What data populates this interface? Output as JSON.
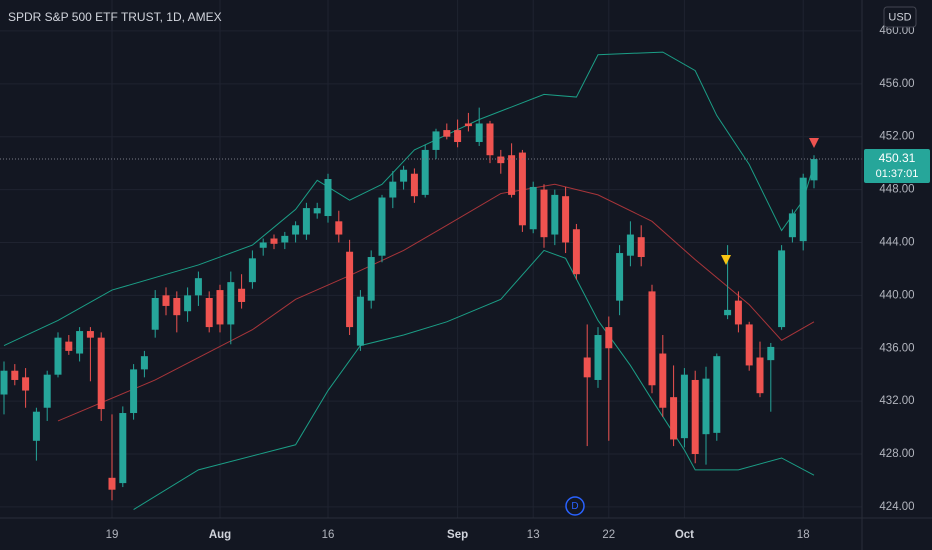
{
  "chart_data": {
    "type": "candlestick",
    "title": "SPDR S&P 500 ETF TRUST, 1D, AMEX",
    "currency": "USD",
    "countdown": "01:37:01",
    "annotation": "D",
    "categories": [
      null,
      null,
      null,
      null,
      null,
      null,
      null,
      null,
      null,
      null,
      "19",
      null,
      null,
      null,
      null,
      null,
      null,
      null,
      null,
      null,
      "Aug",
      null,
      null,
      null,
      null,
      null,
      null,
      null,
      null,
      null,
      "16",
      null,
      null,
      null,
      null,
      null,
      null,
      null,
      null,
      null,
      null,
      null,
      "Sep",
      null,
      null,
      null,
      null,
      null,
      null,
      "13",
      null,
      null,
      null,
      null,
      null,
      null,
      "22",
      null,
      null,
      null,
      null,
      null,
      null,
      "Oct",
      null,
      null,
      null,
      null,
      null,
      null,
      null,
      null,
      null,
      null,
      "18",
      null
    ],
    "open": [
      432.5,
      434.3,
      433.8,
      429,
      431.5,
      434,
      436.5,
      435.6,
      437.3,
      436.8,
      426.2,
      425.8,
      431.1,
      434.4,
      437.4,
      440,
      439.8,
      438.8,
      440,
      439.8,
      440.4,
      437.8,
      440.5,
      441,
      443.6,
      444.3,
      444,
      444.6,
      444.6,
      446.2,
      446,
      445.6,
      443.3,
      436.2,
      439.6,
      443,
      447.4,
      448.6,
      449.2,
      447.6,
      451,
      452.5,
      452.5,
      453,
      451.6,
      453,
      450.5,
      450.6,
      450.8,
      445,
      448,
      444.6,
      447.5,
      445,
      435.3,
      433.6,
      437.6,
      439.6,
      443,
      444.4,
      440.3,
      435.6,
      432.3,
      429.2,
      433.6,
      429.5,
      429.6,
      438.5,
      439.6,
      437.8,
      435.3,
      435.1,
      437.6,
      444.4,
      444.1,
      448.7
    ],
    "high": [
      435,
      434.8,
      434.5,
      431.5,
      434.3,
      437.2,
      437,
      437.6,
      437.6,
      437.2,
      431,
      431.6,
      434.8,
      435.8,
      440.4,
      440.6,
      440.3,
      440.6,
      441.8,
      440.3,
      440.8,
      441.8,
      441.6,
      443.4,
      444.3,
      444.6,
      444.8,
      445.6,
      447,
      447,
      449.2,
      446.4,
      444.2,
      440.4,
      443.4,
      447.6,
      449.4,
      449.8,
      449.6,
      451.4,
      452.6,
      453,
      453.3,
      453.8,
      454.2,
      453.2,
      451,
      451.5,
      451,
      448.6,
      448.4,
      448,
      448.2,
      445.4,
      437.8,
      437.6,
      438.4,
      443.8,
      445.6,
      445.3,
      440.8,
      437,
      434.7,
      434.5,
      434.3,
      434.6,
      435.6,
      443.8,
      440.3,
      438,
      436.5,
      436.4,
      443.8,
      446.5,
      449.2,
      450.6
    ],
    "low": [
      431,
      433.2,
      431.5,
      427.5,
      430.5,
      433.8,
      435.5,
      435,
      433.5,
      430.5,
      424.5,
      425.5,
      430.6,
      433.8,
      436.8,
      438.5,
      437.2,
      438,
      439.2,
      437.2,
      437.2,
      436.3,
      439,
      440.5,
      443,
      443.5,
      443.5,
      444,
      444.2,
      445.8,
      445.5,
      444,
      437,
      435.8,
      439,
      442.5,
      446.6,
      448,
      447,
      447.4,
      450.3,
      451.8,
      451.2,
      452.4,
      451.3,
      450,
      449.2,
      447.4,
      444.8,
      444.7,
      443.6,
      443.8,
      443.2,
      441.2,
      428.6,
      433,
      429,
      438.5,
      442.2,
      442.2,
      432.6,
      430.8,
      428.6,
      428.5,
      427.3,
      427.2,
      429,
      438.2,
      437.2,
      434.3,
      432.3,
      431.2,
      437.4,
      444,
      443.4,
      448.1
    ],
    "close": [
      434.3,
      433.6,
      432.8,
      431.2,
      434,
      436.8,
      435.8,
      437.3,
      436.8,
      431.4,
      425.3,
      431.1,
      434.4,
      435.4,
      439.8,
      439.2,
      438.5,
      440,
      441.3,
      437.6,
      437.8,
      441,
      439.5,
      442.8,
      444,
      443.9,
      444.5,
      445.3,
      446.6,
      446.6,
      448.8,
      444.6,
      437.6,
      439.9,
      442.9,
      447.4,
      448.6,
      449.5,
      447.5,
      451,
      452.4,
      452,
      451.6,
      452.8,
      453,
      450.6,
      450,
      447.6,
      445.3,
      448.2,
      444.4,
      447.6,
      444,
      441.6,
      433.8,
      437,
      436,
      443.2,
      444.6,
      442.9,
      433.2,
      431.5,
      429.1,
      434,
      428,
      433.7,
      435.4,
      438.9,
      437.8,
      434.7,
      432.6,
      436.1,
      443.4,
      446.2,
      448.9,
      450.31
    ],
    "up_color": "#26a69a",
    "down_color": "#ef5350",
    "overlays": [
      {
        "color": "#1b9e86",
        "x": [
          0,
          5,
          10,
          18,
          23,
          27,
          29,
          32,
          35,
          38,
          44,
          50,
          53,
          55,
          61,
          64,
          66,
          69,
          72,
          74,
          75
        ],
        "values": [
          436.2,
          438.1,
          440.4,
          442.3,
          443.8,
          446.5,
          448.7,
          447.2,
          448.4,
          451,
          453.3,
          455.2,
          455,
          458.2,
          458.4,
          457,
          453.6,
          449.9,
          444.9,
          447.2,
          449.9
        ]
      },
      {
        "color": "#a8353a",
        "x": [
          5,
          14,
          23,
          27,
          32,
          37,
          41,
          46,
          51,
          55,
          60,
          64,
          69,
          72,
          75
        ],
        "values": [
          430.5,
          433.6,
          437.4,
          439.7,
          441.5,
          443.4,
          445.3,
          447.7,
          448.4,
          447.6,
          445.6,
          442.7,
          439.3,
          436.6,
          438
        ]
      },
      {
        "color": "#1b9e86",
        "x": [
          12,
          18,
          27,
          30,
          33,
          37,
          41,
          46,
          50,
          52,
          55,
          58,
          60,
          63,
          64,
          68,
          72,
          75
        ],
        "values": [
          423.8,
          426.8,
          428.7,
          432.8,
          436.2,
          437,
          438,
          439.7,
          443.4,
          442.8,
          438.1,
          434.7,
          432.1,
          428.3,
          426.8,
          426.8,
          427.7,
          426.4
        ]
      }
    ],
    "ylim": [
      423.16,
      462.34
    ],
    "yticks": [
      {
        "value": 424,
        "label": "424.00"
      },
      {
        "value": 428,
        "label": "428.00"
      },
      {
        "value": 432,
        "label": "432.00"
      },
      {
        "value": 436,
        "label": "436.00"
      },
      {
        "value": 440,
        "label": "440.00"
      },
      {
        "value": 444,
        "label": "444.00"
      },
      {
        "value": 448,
        "label": "448.00"
      },
      {
        "value": 452,
        "label": "452.00"
      },
      {
        "value": 456,
        "label": "456.00"
      },
      {
        "value": 460,
        "label": "460.00"
      }
    ],
    "grid": true
  }
}
